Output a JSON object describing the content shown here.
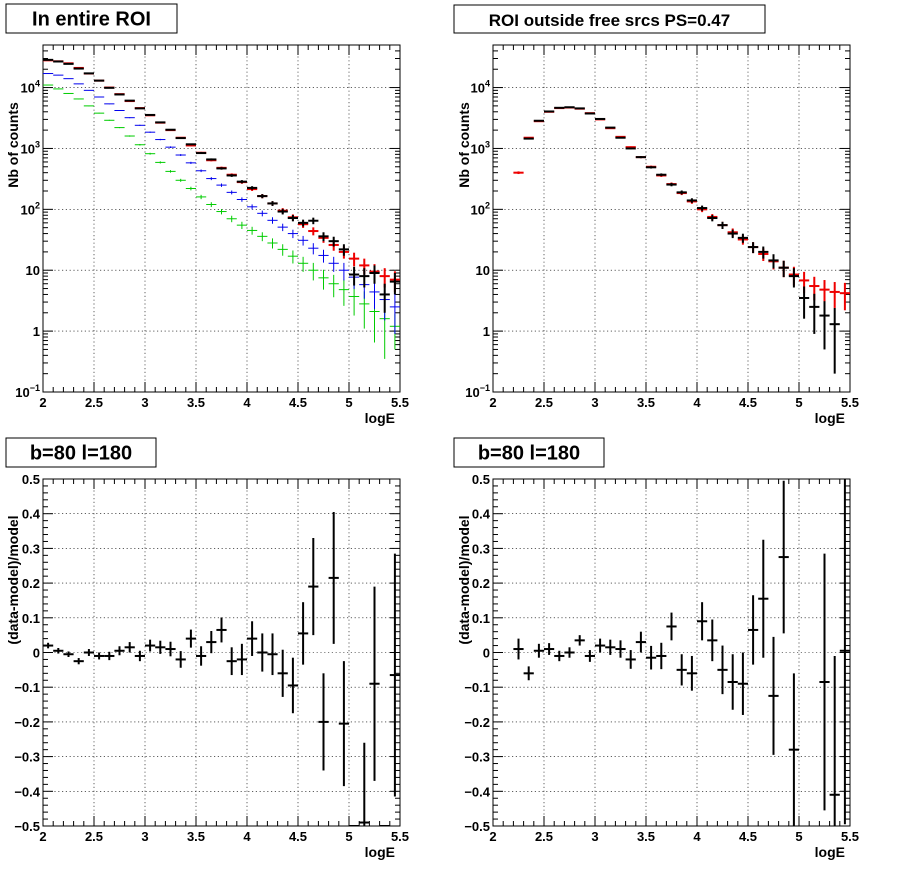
{
  "chart_data": [
    {
      "id": "p1",
      "type": "scatter",
      "title": "In entire ROI",
      "xlabel": "logE",
      "ylabel": "Nb of counts",
      "xlim": [
        2,
        5.5
      ],
      "ylim": [
        0.1,
        50000
      ],
      "yscale": "log",
      "grid": true,
      "xticks": [
        "2",
        "2.5",
        "3",
        "3.5",
        "4",
        "4.5",
        "5",
        "5.5"
      ],
      "yticks": [
        {
          "v": 0.1,
          "base": "10",
          "exp": "−1"
        },
        {
          "v": 1,
          "label": "1"
        },
        {
          "v": 10,
          "label": "10"
        },
        {
          "v": 100,
          "base": "10",
          "exp": "2"
        },
        {
          "v": 1000,
          "base": "10",
          "exp": "3"
        },
        {
          "v": 10000,
          "base": "10",
          "exp": "4"
        }
      ],
      "series": [
        {
          "color": "#00cc00",
          "x": [
            2.05,
            2.15,
            2.25,
            2.35,
            2.45,
            2.55,
            2.65,
            2.75,
            2.85,
            2.95,
            3.05,
            3.15,
            3.25,
            3.35,
            3.45,
            3.55,
            3.65,
            3.75,
            3.85,
            3.95,
            4.05,
            4.15,
            4.25,
            4.35,
            4.45,
            4.55,
            4.65,
            4.75,
            4.85,
            4.95,
            5.05,
            5.15,
            5.25,
            5.35,
            5.45
          ],
          "y": [
            11000,
            9500,
            8000,
            6500,
            5000,
            3800,
            2900,
            2200,
            1600,
            1150,
            820,
            590,
            420,
            300,
            220,
            160,
            120,
            92,
            70,
            55,
            45,
            36,
            28,
            22,
            17,
            13,
            10,
            7.5,
            6,
            4.8,
            3.7,
            2.8,
            2.1,
            1.6,
            1.2
          ],
          "yerr": [
            100,
            95,
            85,
            80,
            70,
            60,
            55,
            47,
            40,
            34,
            29,
            24,
            20,
            17,
            15,
            13,
            11,
            9.5,
            8.5,
            7.5,
            6.7,
            6,
            5.3,
            4.7,
            4.1,
            3.6,
            3.2,
            2.7,
            2.4,
            2.2,
            1.9,
            1.7,
            1.45,
            1.25,
            0.7
          ]
        },
        {
          "color": "#0000ee",
          "x": [
            2.05,
            2.15,
            2.25,
            2.35,
            2.45,
            2.55,
            2.65,
            2.75,
            2.85,
            2.95,
            3.05,
            3.15,
            3.25,
            3.35,
            3.45,
            3.55,
            3.65,
            3.75,
            3.85,
            3.95,
            4.05,
            4.15,
            4.25,
            4.35,
            4.45,
            4.55,
            4.65,
            4.75,
            4.85,
            4.95,
            5.05,
            5.15,
            5.25,
            5.35,
            5.45
          ],
          "y": [
            17000,
            16000,
            14000,
            11500,
            9000,
            7000,
            5400,
            4200,
            3200,
            2400,
            1850,
            1400,
            1050,
            780,
            580,
            430,
            320,
            250,
            190,
            145,
            110,
            86,
            66,
            51,
            40,
            31,
            23,
            17.5,
            13,
            10,
            7.7,
            5.8,
            4.4,
            3.3,
            2.5
          ],
          "yerr": [
            130,
            125,
            118,
            107,
            95,
            84,
            73,
            65,
            57,
            49,
            43,
            37,
            32,
            28,
            24,
            21,
            18,
            16,
            14,
            12,
            10.5,
            9.3,
            8.1,
            7.1,
            6.3,
            5.6,
            4.8,
            4.2,
            3.6,
            3.2,
            2.8,
            2.4,
            2.1,
            1.8,
            1.6
          ]
        },
        {
          "color": "#ee0000",
          "x": [
            2.05,
            2.15,
            2.25,
            2.35,
            2.45,
            2.55,
            2.65,
            2.75,
            2.85,
            2.95,
            3.05,
            3.15,
            3.25,
            3.35,
            3.45,
            3.55,
            3.65,
            3.75,
            3.85,
            3.95,
            4.05,
            4.15,
            4.25,
            4.35,
            4.45,
            4.55,
            4.65,
            4.75,
            4.85,
            4.95,
            5.05,
            5.15,
            5.25,
            5.35,
            5.45
          ],
          "y": [
            28000,
            27000,
            25000,
            21000,
            17000,
            13000,
            10000,
            7800,
            6000,
            4600,
            3500,
            2650,
            2000,
            1500,
            1120,
            850,
            640,
            480,
            370,
            280,
            215,
            165,
            125,
            95,
            74,
            57,
            44,
            34,
            26,
            20,
            15.5,
            12,
            9.5,
            8,
            7
          ],
          "yerr": [
            167,
            164,
            158,
            145,
            130,
            114,
            100,
            88,
            77,
            68,
            59,
            51,
            45,
            39,
            33,
            29,
            25,
            22,
            19,
            17,
            14.7,
            12.8,
            11.2,
            9.7,
            8.6,
            7.5,
            6.6,
            5.8,
            5.1,
            4.5,
            3.9,
            3.5,
            3.1,
            2.8,
            2.6
          ]
        },
        {
          "color": "#000000",
          "x": [
            2.05,
            2.15,
            2.25,
            2.35,
            2.45,
            2.55,
            2.65,
            2.75,
            2.85,
            2.95,
            3.05,
            3.15,
            3.25,
            3.35,
            3.45,
            3.55,
            3.65,
            3.75,
            3.85,
            3.95,
            4.05,
            4.15,
            4.25,
            4.35,
            4.45,
            4.55,
            4.65,
            4.75,
            4.85,
            4.95,
            5.05,
            5.15,
            5.25,
            5.35,
            5.45
          ],
          "y": [
            28500,
            26800,
            24500,
            20500,
            17100,
            13000,
            9900,
            7700,
            6100,
            4550,
            3550,
            2680,
            2030,
            1480,
            1170,
            840,
            660,
            470,
            360,
            285,
            225,
            165,
            125,
            92,
            72,
            60,
            65,
            36,
            30,
            22,
            8.5,
            8,
            9,
            4,
            6.5
          ],
          "yerr": [
            169,
            164,
            157,
            143,
            131,
            114,
            99,
            88,
            78,
            67,
            60,
            52,
            45,
            38,
            34,
            29,
            26,
            22,
            19,
            17,
            15,
            12.8,
            11.2,
            9.6,
            8.5,
            7.7,
            8,
            6,
            5.5,
            4.7,
            2.9,
            2.8,
            3,
            2,
            2.5
          ]
        }
      ]
    },
    {
      "id": "p2",
      "type": "scatter",
      "title": "ROI outside free srcs PS=0.47",
      "xlabel": "logE",
      "ylabel": "Nb of counts",
      "xlim": [
        2,
        5.5
      ],
      "ylim": [
        0.1,
        50000
      ],
      "yscale": "log",
      "grid": true,
      "xticks": [
        "2",
        "2.5",
        "3",
        "3.5",
        "4",
        "4.5",
        "5",
        "5.5"
      ],
      "yticks": [
        {
          "v": 0.1,
          "base": "10",
          "exp": "−1"
        },
        {
          "v": 1,
          "label": "1"
        },
        {
          "v": 10,
          "label": "10"
        },
        {
          "v": 100,
          "base": "10",
          "exp": "2"
        },
        {
          "v": 1000,
          "base": "10",
          "exp": "3"
        },
        {
          "v": 10000,
          "base": "10",
          "exp": "4"
        }
      ],
      "series": [
        {
          "color": "#ee0000",
          "x": [
            2.25,
            2.35,
            2.45,
            2.55,
            2.65,
            2.75,
            2.85,
            2.95,
            3.05,
            3.15,
            3.25,
            3.35,
            3.45,
            3.55,
            3.65,
            3.75,
            3.85,
            3.95,
            4.05,
            4.15,
            4.25,
            4.35,
            4.45,
            4.55,
            4.65,
            4.75,
            4.85,
            4.95,
            5.05,
            5.15,
            5.25,
            5.35,
            5.45
          ],
          "y": [
            400,
            1500,
            2800,
            4000,
            4600,
            4700,
            4500,
            3800,
            3000,
            2150,
            1550,
            1050,
            720,
            500,
            360,
            260,
            185,
            135,
            100,
            75,
            55,
            42,
            32,
            24,
            18.5,
            14,
            11,
            8.5,
            6.8,
            5.5,
            4.8,
            4.4,
            4.2
          ],
          "yerr": [
            20,
            39,
            53,
            63,
            68,
            69,
            67,
            62,
            55,
            46,
            39,
            32,
            27,
            22,
            19,
            16,
            13.6,
            11.6,
            10,
            8.7,
            7.4,
            6.5,
            5.7,
            4.9,
            4.3,
            3.7,
            3.3,
            2.9,
            2.6,
            2.3,
            2.1,
            2,
            2
          ]
        },
        {
          "color": "#000000",
          "x": [
            2.35,
            2.45,
            2.55,
            2.65,
            2.75,
            2.85,
            2.95,
            3.05,
            3.15,
            3.25,
            3.35,
            3.45,
            3.55,
            3.65,
            3.75,
            3.85,
            3.95,
            4.05,
            4.15,
            4.25,
            4.35,
            4.45,
            4.55,
            4.65,
            4.75,
            4.85,
            4.95,
            5.05,
            5.15,
            5.25,
            5.35
          ],
          "y": [
            1450,
            2850,
            4050,
            4650,
            4750,
            4550,
            3750,
            3050,
            2200,
            1500,
            1000,
            720,
            490,
            370,
            255,
            190,
            140,
            105,
            72,
            55,
            40,
            34,
            24,
            20,
            14.5,
            11,
            8,
            3.5,
            2.5,
            1.8,
            1.3
          ],
          "yerr": [
            38,
            53,
            64,
            68,
            69,
            67,
            61,
            55,
            47,
            39,
            32,
            27,
            22,
            19,
            16,
            14,
            12,
            10.2,
            8.5,
            7.4,
            6.3,
            5.8,
            4.9,
            4.5,
            3.8,
            3.3,
            2.8,
            1.9,
            1.6,
            1.3,
            1.1
          ]
        }
      ]
    },
    {
      "id": "p3",
      "type": "scatter",
      "title": "b=80 l=180",
      "xlabel": "logE",
      "ylabel": "(data-model)/model",
      "xlim": [
        2,
        5.5
      ],
      "ylim": [
        -0.5,
        0.5
      ],
      "yscale": "linear",
      "grid": true,
      "xticks": [
        "2",
        "2.5",
        "3",
        "3.5",
        "4",
        "4.5",
        "5",
        "5.5"
      ],
      "yticks": [
        {
          "v": -0.5,
          "label": "−0.5"
        },
        {
          "v": -0.4,
          "label": "−0.4"
        },
        {
          "v": -0.3,
          "label": "−0.3"
        },
        {
          "v": -0.2,
          "label": "−0.2"
        },
        {
          "v": -0.1,
          "label": "−0.1"
        },
        {
          "v": 0,
          "label": "0"
        },
        {
          "v": 0.1,
          "label": "0.1"
        },
        {
          "v": 0.2,
          "label": "0.2"
        },
        {
          "v": 0.3,
          "label": "0.3"
        },
        {
          "v": 0.4,
          "label": "0.4"
        },
        {
          "v": 0.5,
          "label": "0.5"
        }
      ],
      "series": [
        {
          "color": "#000000",
          "x": [
            2.05,
            2.15,
            2.25,
            2.35,
            2.45,
            2.55,
            2.65,
            2.75,
            2.85,
            2.95,
            3.05,
            3.15,
            3.25,
            3.35,
            3.45,
            3.55,
            3.65,
            3.75,
            3.85,
            3.95,
            4.05,
            4.15,
            4.25,
            4.35,
            4.45,
            4.55,
            4.65,
            4.75,
            4.85,
            4.95,
            5.05,
            5.15,
            5.25,
            5.35,
            5.45
          ],
          "y": [
            0.02,
            0.005,
            -0.005,
            -0.025,
            0,
            -0.01,
            -0.01,
            0.005,
            0.015,
            -0.01,
            0.02,
            0.015,
            0.01,
            -0.02,
            0.04,
            -0.01,
            0.03,
            0.065,
            -0.025,
            -0.02,
            0.04,
            0.0,
            -0.005,
            -0.06,
            -0.095,
            0.055,
            0.19,
            -0.2,
            0.215,
            -0.205,
            -0.5,
            -0.49,
            -0.09,
            -0.5,
            -0.065
          ],
          "yerr": [
            0.008,
            0.008,
            0.008,
            0.009,
            0.01,
            0.01,
            0.012,
            0.013,
            0.015,
            0.015,
            0.017,
            0.019,
            0.021,
            0.024,
            0.026,
            0.028,
            0.032,
            0.036,
            0.04,
            0.045,
            0.05,
            0.055,
            0.06,
            0.068,
            0.08,
            0.09,
            0.14,
            0.14,
            0.19,
            0.18,
            0.0,
            0.23,
            0.28,
            0.0,
            0.35
          ]
        }
      ]
    },
    {
      "id": "p4",
      "type": "scatter",
      "title": "b=80 l=180",
      "xlabel": "logE",
      "ylabel": "(data-model)/model",
      "xlim": [
        2,
        5.5
      ],
      "ylim": [
        -0.5,
        0.5
      ],
      "yscale": "linear",
      "grid": true,
      "xticks": [
        "2",
        "2.5",
        "3",
        "3.5",
        "4",
        "4.5",
        "5",
        "5.5"
      ],
      "yticks": [
        {
          "v": -0.5,
          "label": "−0.5"
        },
        {
          "v": -0.4,
          "label": "−0.4"
        },
        {
          "v": -0.3,
          "label": "−0.3"
        },
        {
          "v": -0.2,
          "label": "−0.2"
        },
        {
          "v": -0.1,
          "label": "−0.1"
        },
        {
          "v": 0,
          "label": "0"
        },
        {
          "v": 0.1,
          "label": "0.1"
        },
        {
          "v": 0.2,
          "label": "0.2"
        },
        {
          "v": 0.3,
          "label": "0.3"
        },
        {
          "v": 0.4,
          "label": "0.4"
        },
        {
          "v": 0.5,
          "label": "0.5"
        }
      ],
      "series": [
        {
          "color": "#000000",
          "x": [
            2.25,
            2.35,
            2.45,
            2.55,
            2.65,
            2.75,
            2.85,
            2.95,
            3.05,
            3.15,
            3.25,
            3.35,
            3.45,
            3.55,
            3.65,
            3.75,
            3.85,
            3.95,
            4.05,
            4.15,
            4.25,
            4.35,
            4.45,
            4.55,
            4.65,
            4.75,
            4.85,
            4.95,
            5.25,
            5.35,
            5.45
          ],
          "y": [
            0.01,
            -0.06,
            0.005,
            0.01,
            -0.01,
            0.0,
            0.035,
            -0.01,
            0.02,
            0.015,
            0.01,
            -0.02,
            0.03,
            -0.015,
            -0.01,
            0.075,
            -0.05,
            -0.06,
            0.09,
            0.035,
            -0.05,
            -0.085,
            -0.09,
            0.065,
            0.155,
            -0.125,
            0.275,
            -0.28,
            -0.085,
            -0.41,
            0.005
          ],
          "yerr": [
            0.03,
            0.02,
            0.02,
            0.017,
            0.015,
            0.015,
            0.015,
            0.017,
            0.02,
            0.022,
            0.025,
            0.027,
            0.03,
            0.034,
            0.038,
            0.04,
            0.045,
            0.05,
            0.055,
            0.06,
            0.07,
            0.08,
            0.09,
            0.1,
            0.17,
            0.17,
            0.22,
            0.22,
            0.37,
            0.4,
            0.5
          ]
        }
      ]
    }
  ]
}
